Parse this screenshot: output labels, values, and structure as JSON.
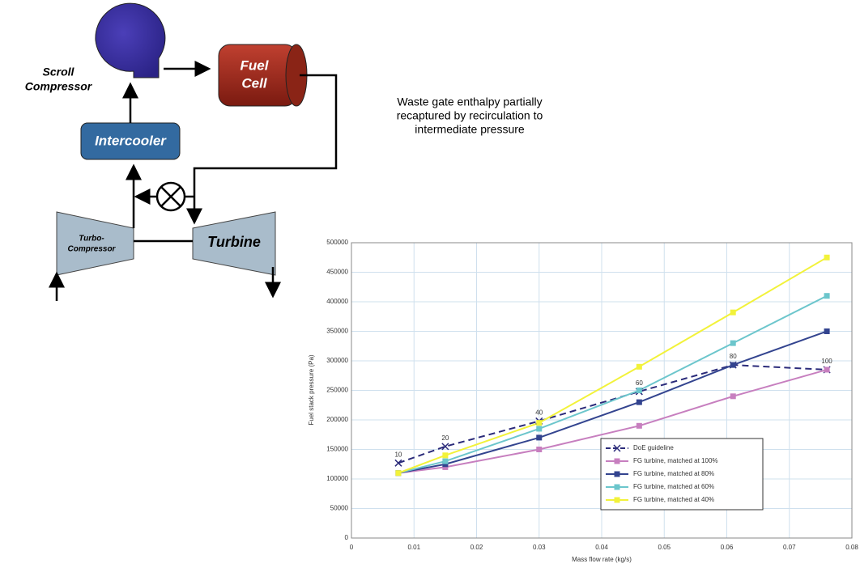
{
  "diagram": {
    "scroll_compressor": [
      "Scroll",
      "Compressor"
    ],
    "fuel_cell": [
      "Fuel",
      "Cell"
    ],
    "intercooler": "Intercooler",
    "turbo_compressor": [
      "Turbo-",
      "Compressor"
    ],
    "turbine": "Turbine",
    "note": [
      "Waste gate enthalpy partially",
      "recaptured by recirculation to",
      "intermediate pressure"
    ]
  },
  "chart_data": {
    "type": "line",
    "x_label": "Mass flow rate (kg/s)",
    "y_label": "Fuel stack pressure (Pa)",
    "x": [
      0.0075,
      0.015,
      0.03,
      0.046,
      0.061,
      0.076
    ],
    "xlim": [
      0,
      0.08
    ],
    "xticks": [
      0,
      0.01,
      0.02,
      0.03,
      0.04,
      0.05,
      0.06,
      0.07,
      0.08
    ],
    "ylim": [
      0,
      500000
    ],
    "yticks": [
      0,
      50000,
      100000,
      150000,
      200000,
      250000,
      300000,
      350000,
      400000,
      450000,
      500000
    ],
    "grid": true,
    "legend": "lower right",
    "series": [
      {
        "name": "DoE guideline",
        "color": "#2b2b7a",
        "dashed": true,
        "marker": "x",
        "values": [
          127000,
          155000,
          198000,
          248000,
          293000,
          285000
        ],
        "point_labels": [
          10,
          20,
          40,
          60,
          80,
          100
        ]
      },
      {
        "name": "FG turbine, matched at 100%",
        "color": "#c77fbf",
        "marker": "square",
        "values": [
          110000,
          120000,
          150000,
          190000,
          240000,
          285000
        ]
      },
      {
        "name": "FG turbine, matched at 80%",
        "color": "#33448f",
        "marker": "square",
        "values": [
          110000,
          125000,
          170000,
          230000,
          293000,
          350000
        ]
      },
      {
        "name": "FG turbine, matched at 60%",
        "color": "#6cc6cc",
        "marker": "square",
        "values": [
          110000,
          130000,
          185000,
          250000,
          330000,
          410000
        ]
      },
      {
        "name": "FG turbine, matched at 40%",
        "color": "#f2f23a",
        "marker": "square",
        "values": [
          110000,
          140000,
          195000,
          290000,
          382000,
          475000
        ]
      }
    ]
  }
}
